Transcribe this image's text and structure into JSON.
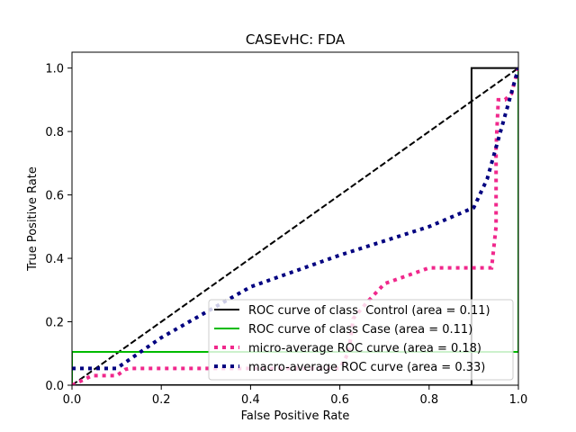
{
  "chart_data": {
    "type": "line",
    "title": "CASEvHC: FDA",
    "xlabel": "False Positive Rate",
    "ylabel": "True Positive Rate",
    "xlim": [
      0.0,
      1.0
    ],
    "ylim": [
      0.0,
      1.05
    ],
    "xticks": [
      0.0,
      0.2,
      0.4,
      0.6,
      0.8,
      1.0
    ],
    "yticks": [
      0.0,
      0.2,
      0.4,
      0.6,
      0.8,
      1.0
    ],
    "xtick_labels": [
      "0.0",
      "0.2",
      "0.4",
      "0.6",
      "0.8",
      "1.0"
    ],
    "ytick_labels": [
      "0.0",
      "0.2",
      "0.4",
      "0.6",
      "0.8",
      "1.0"
    ],
    "grid": false,
    "legend_position": "lower-right",
    "chance_line": {
      "x": [
        0.0,
        1.0
      ],
      "y": [
        0.0,
        1.0
      ],
      "color": "#000000",
      "style": "dashed"
    },
    "series": [
      {
        "name": "ROC curve of class  Control (area = 0.11)",
        "color": "#000000",
        "style": "solid",
        "x": [
          0.0,
          0.895,
          0.895,
          1.0
        ],
        "y": [
          0.0,
          0.0,
          1.0,
          1.0
        ]
      },
      {
        "name": "ROC curve of class Case (area = 0.11)",
        "color": "#00bb00",
        "style": "solid",
        "x": [
          0.0,
          0.0,
          1.0,
          1.0
        ],
        "y": [
          0.0,
          0.105,
          0.105,
          1.0
        ]
      },
      {
        "name": "micro-average ROC curve (area = 0.18)",
        "color": "#f0288c",
        "style": "dotted",
        "x": [
          0.0,
          0.045,
          0.1,
          0.12,
          0.13,
          0.6,
          0.62,
          0.63,
          0.66,
          0.7,
          0.74,
          0.8,
          0.86,
          0.94,
          0.95,
          0.95,
          0.955,
          0.97,
          0.985,
          0.99,
          1.0
        ],
        "y": [
          0.0,
          0.03,
          0.03,
          0.05,
          0.053,
          0.053,
          0.105,
          0.21,
          0.26,
          0.32,
          0.34,
          0.37,
          0.37,
          0.37,
          0.5,
          0.75,
          0.9,
          0.9,
          0.92,
          0.95,
          1.0
        ]
      },
      {
        "name": "macro-average ROC curve (area = 0.33)",
        "color": "#000080",
        "style": "dotted",
        "x": [
          0.0,
          0.1,
          0.2,
          0.4,
          0.6,
          0.8,
          0.9,
          0.93,
          0.95,
          0.97,
          0.99,
          1.0
        ],
        "y": [
          0.053,
          0.053,
          0.15,
          0.31,
          0.41,
          0.5,
          0.56,
          0.65,
          0.75,
          0.85,
          0.95,
          1.0
        ]
      }
    ]
  }
}
